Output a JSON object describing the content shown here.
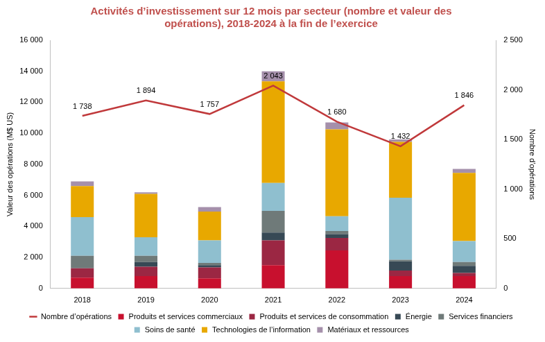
{
  "chart_data": {
    "type": "bar",
    "title": [
      "Activités d’investissement sur 12 mois par secteur (nombre et valeur des",
      "opérations), 2018-2024 à la fin de l’exercice"
    ],
    "x_label": null,
    "y_label": "Valeur des opérations (M$ US)",
    "y2_label": "Nombre d’opérations",
    "categories": [
      "2018",
      "2019",
      "2020",
      "2021",
      "2022",
      "2023",
      "2024"
    ],
    "stacked": true,
    "grid": false,
    "legend": "bottom",
    "ylim": [
      0,
      16000
    ],
    "yticks": [
      0,
      {
        "value": 2000,
        "label": "2 000"
      },
      {
        "value": 4000,
        "label": "4 000"
      },
      {
        "value": 6000,
        "label": "6 000"
      },
      {
        "value": 8000,
        "label": "8 000"
      },
      {
        "value": 10000,
        "label": "10 000"
      },
      {
        "value": 12000,
        "label": "12 000"
      },
      {
        "value": 14000,
        "label": "14 000"
      },
      {
        "value": 16000,
        "label": "16 000"
      }
    ],
    "y2lim": [
      0,
      2500
    ],
    "y2ticks": [
      0,
      500,
      {
        "value": 1000,
        "label": "1 000"
      },
      {
        "value": 1500,
        "label": "1 500"
      },
      {
        "value": 2000,
        "label": "2 000"
      },
      {
        "value": 2500,
        "label": "2 500"
      }
    ],
    "series": [
      {
        "name": "Produits et services commerciaux",
        "type": "bar",
        "color": "#c8102e",
        "values": [
          700,
          800,
          650,
          1500,
          2450,
          800,
          800
        ]
      },
      {
        "name": "Produits et services de consommation",
        "type": "bar",
        "color": "#9b2743",
        "values": [
          600,
          600,
          700,
          1600,
          800,
          350,
          200
        ]
      },
      {
        "name": "Énergie",
        "type": "bar",
        "color": "#374955",
        "values": [
          0,
          300,
          150,
          500,
          250,
          600,
          450
        ]
      },
      {
        "name": "Services financiers",
        "type": "bar",
        "color": "#6f7a79",
        "values": [
          800,
          400,
          150,
          1400,
          200,
          100,
          250
        ]
      },
      {
        "name": "Soins de santé",
        "type": "bar",
        "color": "#8fbfcf",
        "values": [
          2500,
          1200,
          1450,
          1800,
          950,
          4000,
          1350
        ]
      },
      {
        "name": "Technologies de l’information",
        "type": "bar",
        "color": "#e8a800",
        "values": [
          2000,
          2800,
          1850,
          6550,
          5600,
          3600,
          4400
        ]
      },
      {
        "name": "Matériaux et ressources",
        "type": "bar",
        "color": "#a590ab",
        "values": [
          300,
          100,
          300,
          650,
          450,
          150,
          250
        ]
      },
      {
        "name": "Nombre d’opérations",
        "type": "line",
        "axis": "y2",
        "color": "#c0393b",
        "data_labels": true,
        "values": [
          1738,
          1894,
          1757,
          2043,
          1680,
          1432,
          1846
        ],
        "value_labels": [
          "1 738",
          "1 894",
          "1 757",
          "2 043",
          "1 680",
          "1 432",
          "1 846"
        ]
      }
    ]
  }
}
